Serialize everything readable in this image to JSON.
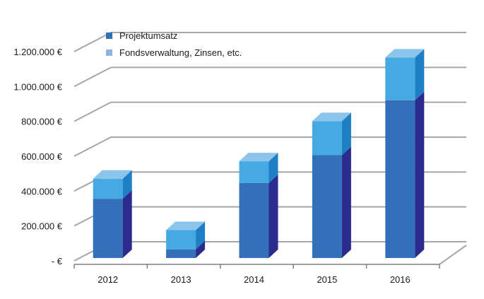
{
  "chart_data": {
    "type": "bar",
    "stacked": true,
    "three_d": true,
    "categories": [
      "2012",
      "2013",
      "2014",
      "2015",
      "2016"
    ],
    "series": [
      {
        "name": "Projektumsatz",
        "values": [
          340000,
          50000,
          430000,
          590000,
          905000
        ]
      },
      {
        "name": "Fondsverwaltung, Zinsen, etc.",
        "values": [
          115000,
          110000,
          125000,
          195000,
          245000
        ]
      }
    ],
    "y_ticks": [
      {
        "value": 0,
        "label": "- €"
      },
      {
        "value": 200000,
        "label": "200.000 €"
      },
      {
        "value": 400000,
        "label": "400.000 €"
      },
      {
        "value": 600000,
        "label": "600.000 €"
      },
      {
        "value": 800000,
        "label": "800.000 €"
      },
      {
        "value": 1000000,
        "label": "1.000.000 €"
      },
      {
        "value": 1200000,
        "label": "1.200.000 €"
      }
    ],
    "ylim": [
      0,
      1200000
    ],
    "grid": true,
    "legend_position": "top-left",
    "colors": {
      "Projektumsatz": {
        "front": "#3370b9",
        "side": "#2a2b8c",
        "top": "#2f5fae"
      },
      "Fondsverwaltung, Zinsen, etc.": {
        "front": "#46a9e2",
        "side": "#1f7fc4",
        "top": "#8cc4ec"
      },
      "legend_swatch_2": "#8fb4e3",
      "grid": "#a6a6a6",
      "axis": "#7f7f7f"
    }
  }
}
